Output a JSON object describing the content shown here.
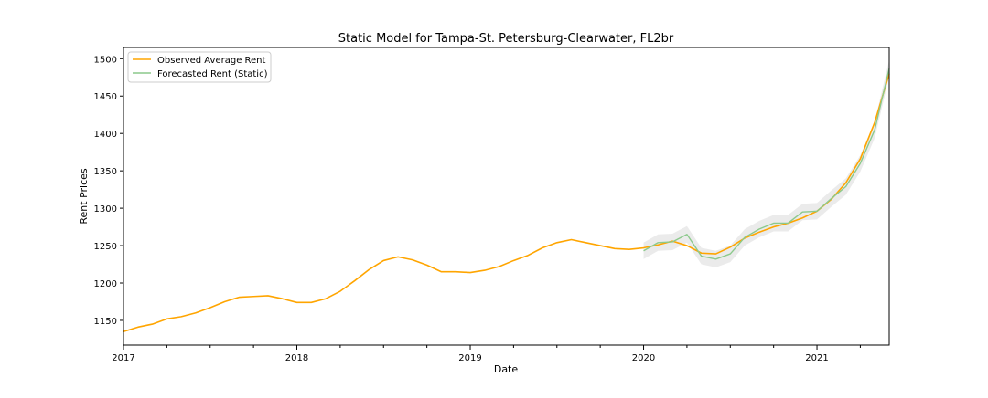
{
  "chart_data": {
    "type": "line",
    "title": "Static Model for Tampa-St. Petersburg-Clearwater, FL2br",
    "xlabel": "Date",
    "ylabel": "Rent Prices",
    "xlim": [
      "2017-01",
      "2021-06"
    ],
    "ylim": [
      1117,
      1515
    ],
    "x_ticks": [
      "2017",
      "2018",
      "2019",
      "2020",
      "2021"
    ],
    "y_ticks": [
      1150,
      1200,
      1250,
      1300,
      1350,
      1400,
      1450,
      1500
    ],
    "legend_position": "top-left",
    "grid": false,
    "series": [
      {
        "name": "Observed Average Rent",
        "color": "#FFA500",
        "x": [
          "2017-01",
          "2017-02",
          "2017-03",
          "2017-04",
          "2017-05",
          "2017-06",
          "2017-07",
          "2017-08",
          "2017-09",
          "2017-10",
          "2017-11",
          "2017-12",
          "2018-01",
          "2018-02",
          "2018-03",
          "2018-04",
          "2018-05",
          "2018-06",
          "2018-07",
          "2018-08",
          "2018-09",
          "2018-10",
          "2018-11",
          "2018-12",
          "2019-01",
          "2019-02",
          "2019-03",
          "2019-04",
          "2019-05",
          "2019-06",
          "2019-07",
          "2019-08",
          "2019-09",
          "2019-10",
          "2019-11",
          "2019-12",
          "2020-01",
          "2020-02",
          "2020-03",
          "2020-04",
          "2020-05",
          "2020-06",
          "2020-07",
          "2020-08",
          "2020-09",
          "2020-10",
          "2020-11",
          "2020-12",
          "2021-01",
          "2021-02",
          "2021-03",
          "2021-04",
          "2021-05",
          "2021-06"
        ],
        "values": [
          1135,
          1141,
          1145,
          1152,
          1155,
          1160,
          1167,
          1175,
          1181,
          1182,
          1183,
          1179,
          1174,
          1174,
          1179,
          1189,
          1203,
          1218,
          1230,
          1235,
          1231,
          1224,
          1215,
          1215,
          1214,
          1217,
          1222,
          1230,
          1237,
          1247,
          1254,
          1258,
          1254,
          1250,
          1246,
          1245,
          1247,
          1251,
          1256,
          1250,
          1240,
          1239,
          1248,
          1260,
          1268,
          1275,
          1280,
          1287,
          1296,
          1312,
          1334,
          1366,
          1415,
          1480
        ]
      },
      {
        "name": "Forecasted Rent (Static)",
        "color": "#8CC98C",
        "x": [
          "2020-01",
          "2020-02",
          "2020-03",
          "2020-04",
          "2020-05",
          "2020-06",
          "2020-07",
          "2020-08",
          "2020-09",
          "2020-10",
          "2020-11",
          "2020-12",
          "2021-01",
          "2021-02",
          "2021-03",
          "2021-04",
          "2021-05",
          "2021-06"
        ],
        "values": [
          1243,
          1254,
          1255,
          1265,
          1236,
          1232,
          1239,
          1261,
          1272,
          1280,
          1280,
          1295,
          1296,
          1313,
          1329,
          1360,
          1405,
          1487
        ],
        "ci_lower": [
          1232,
          1243,
          1244,
          1254,
          1225,
          1221,
          1228,
          1250,
          1261,
          1269,
          1269,
          1284,
          1285,
          1302,
          1318,
          1349,
          1394,
          1476
        ],
        "ci_upper": [
          1254,
          1265,
          1266,
          1276,
          1247,
          1243,
          1250,
          1272,
          1283,
          1291,
          1291,
          1306,
          1307,
          1324,
          1340,
          1371,
          1416,
          1498
        ],
        "ci_color": "#e8e8e8"
      }
    ]
  }
}
